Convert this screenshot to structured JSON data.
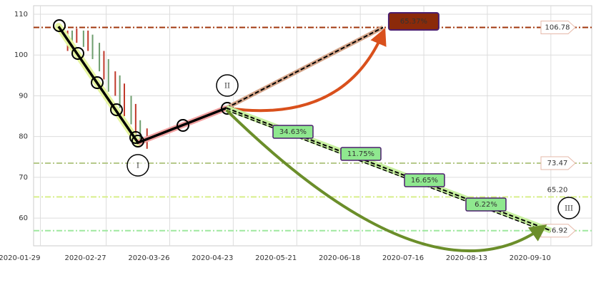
{
  "chart_data": {
    "type": "wave",
    "xlim": [
      "2020-01-26",
      "2020-09-28"
    ],
    "xticks": [
      "2020-01-29",
      "2020-02-27",
      "2020-03-26",
      "2020-04-23",
      "2020-05-21",
      "2020-06-18",
      "2020-07-16",
      "2020-08-13",
      "2020-09-10"
    ],
    "ylim": [
      53.2,
      112.1
    ],
    "yticks": [
      60,
      70,
      80,
      90,
      100,
      110
    ],
    "grid": true,
    "levels": [
      {
        "value": 106.78,
        "color": "#a0360c"
      },
      {
        "value": 73.47,
        "color": "#b5c98a"
      },
      {
        "value": 65.2,
        "label": "65.20",
        "color": "#d8ef8a"
      },
      {
        "value": 56.92,
        "color": "#9ee89e"
      }
    ],
    "candles": {
      "x": [
        "2020-02-10",
        "2020-02-12",
        "2020-02-14",
        "2020-02-17",
        "2020-02-19",
        "2020-02-21",
        "2020-02-24",
        "2020-02-26",
        "2020-02-28",
        "2020-03-02",
        "2020-03-04",
        "2020-03-06",
        "2020-03-09",
        "2020-03-11",
        "2020-03-13",
        "2020-03-16"
      ],
      "low": [
        101,
        102,
        103,
        102,
        101,
        99,
        96,
        94,
        91,
        90,
        87,
        85,
        83,
        80,
        78,
        77
      ],
      "high": [
        106,
        106,
        106.5,
        106,
        106,
        105,
        103,
        101,
        99,
        96,
        95,
        93,
        90,
        88,
        84,
        82
      ],
      "colors": [
        "#c0392b",
        "#6e9e6e",
        "#c0392b",
        "#6e9e6e",
        "#c0392b",
        "#6e9e6e",
        "#6e9e6e",
        "#c0392b",
        "#6e9e6e",
        "#c0392b",
        "#6e9e6e",
        "#c0392b",
        "#6e9e6e",
        "#c0392b",
        "#6e9e6e",
        "#c0392b"
      ]
    },
    "wave": {
      "x": [
        "2020-02-06",
        "2020-03-12",
        "2020-04-20"
      ],
      "values": [
        107,
        78.5,
        87
      ]
    },
    "wave_labels": [
      "I",
      "II",
      "III"
    ],
    "up_target": {
      "x": "2020-06-28",
      "value": 106.78,
      "label": "65.37%"
    },
    "down_target": {
      "x": "2020-09-10",
      "value": 56.92
    },
    "down_labels": [
      "34.63%",
      "11.75%",
      "16.65%",
      "6.22%"
    ]
  }
}
